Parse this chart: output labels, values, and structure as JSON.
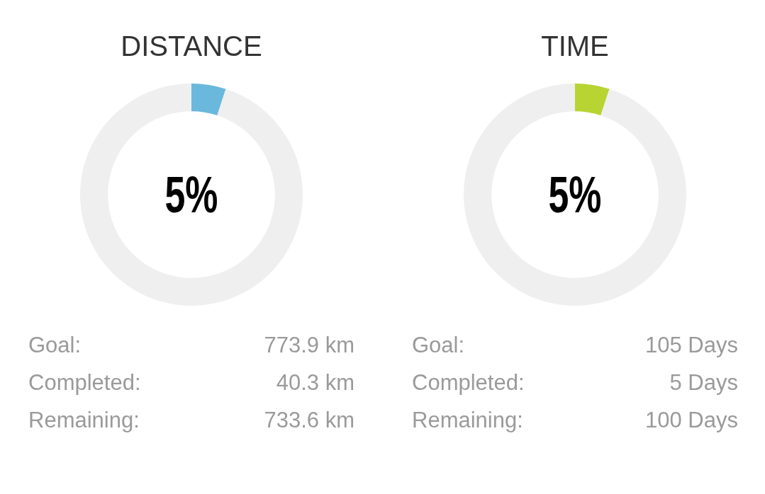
{
  "chart_data": [
    {
      "type": "donut",
      "title": "DISTANCE",
      "categories": [
        null,
        null
      ],
      "values": [
        5,
        95
      ],
      "colors": [
        "#6ab8dc",
        "#efefef"
      ],
      "annotations": [
        "5%",
        "Goal:",
        "773.9 km",
        "Completed:",
        "40.3 km",
        "Remaining:",
        "733.6 km"
      ]
    },
    {
      "type": "donut",
      "title": "TIME",
      "categories": [
        null,
        null
      ],
      "values": [
        5,
        95
      ],
      "colors": [
        "#b8d432",
        "#efefef"
      ],
      "annotations": [
        "5%",
        "Goal:",
        "105 Days",
        "Completed:",
        "5 Days",
        "Remaining:",
        "100 Days"
      ]
    }
  ]
}
